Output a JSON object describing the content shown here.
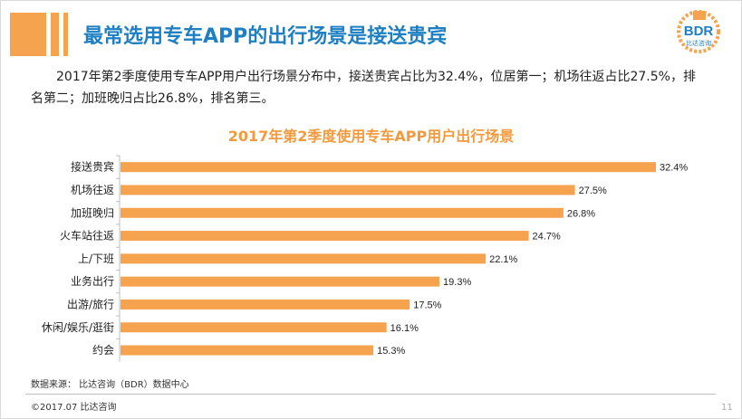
{
  "header": {
    "title": "最常选用专车APP的出行场景是接送贵宾"
  },
  "logo": {
    "text": "BDR",
    "subtext": "比达咨询",
    "icon": "bdr-logo-icon"
  },
  "description": "2017年第2季度使用专车APP用户出行场景分布中，接送贵宾占比为32.4%，位居第一；机场往返占比27.5%，排名第二；加班晚归占比26.8%，排名第三。",
  "chart_data": {
    "type": "bar",
    "orientation": "horizontal",
    "title": "2017年第2季度使用专车APP用户出行场景",
    "categories": [
      "接送贵宾",
      "机场往返",
      "加班晚归",
      "火车站往返",
      "上/下班",
      "业务出行",
      "出游/旅行",
      "休闲/娱乐/逛街",
      "约会"
    ],
    "values": [
      32.4,
      27.5,
      26.8,
      24.7,
      22.1,
      19.3,
      17.5,
      16.1,
      15.3
    ],
    "value_labels": [
      "32.4%",
      "27.5%",
      "26.8%",
      "24.7%",
      "22.1%",
      "19.3%",
      "17.5%",
      "16.1%",
      "15.3%"
    ],
    "unit": "%",
    "xlim": [
      0,
      32.4
    ],
    "grid": false,
    "legend": "none",
    "xlabel": "",
    "ylabel": "",
    "bar_color": "#f6a34f"
  },
  "footer": {
    "source": "数据来源：  比达咨询（BDR）数据中心",
    "copyright": "©2017.07    比达咨询",
    "page_number": "11"
  },
  "colors": {
    "accent": "#f6a34f",
    "title": "#1e7fc3",
    "chart_title": "#f39a3e"
  }
}
